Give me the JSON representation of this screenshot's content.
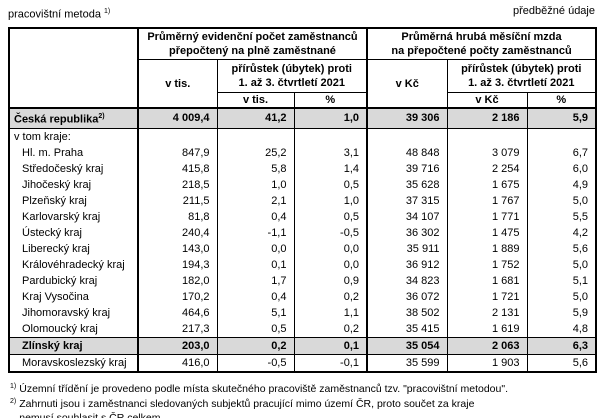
{
  "page": {
    "top_left_label": "pracovištní metoda",
    "top_left_sup": "1)",
    "top_right_label": "předběžné údaje"
  },
  "table": {
    "header": {
      "group1": "Průměrný evidenční počet zaměstnanců\npřepočtený na plně zaměstnané",
      "group2": "Průměrná hrubá měsíční mzda\nna přepočtené počty zaměstnanců",
      "col_v_tis": "v tis.",
      "col_v_kc": "v Kč",
      "increase1": "přírůstek (úbytek) proti\n1. až 3. čtvrtletí 2021",
      "increase2": "přírůstek (úbytek) proti\n1. až 3. čtvrtletí 2021",
      "sub_v_tis": "v tis.",
      "sub_pct1": "%",
      "sub_v_kc": "v Kč",
      "sub_pct2": "%"
    },
    "rows": [
      {
        "label": "Česká republika",
        "sup": "2)",
        "highlight": true,
        "indent": false,
        "values": [
          "4 009,4",
          "41,2",
          "1,0",
          "39 306",
          "2 186",
          "5,9"
        ]
      },
      {
        "label": "v tom kraje:",
        "section": true,
        "indent": false,
        "values": [
          "",
          "",
          "",
          "",
          "",
          ""
        ]
      },
      {
        "label": "Hl. m. Praha",
        "indent": true,
        "values": [
          "847,9",
          "25,2",
          "3,1",
          "48 848",
          "3 079",
          "6,7"
        ]
      },
      {
        "label": "Středočeský kraj",
        "indent": true,
        "values": [
          "415,8",
          "5,8",
          "1,4",
          "39 716",
          "2 254",
          "6,0"
        ]
      },
      {
        "label": "Jihočeský kraj",
        "indent": true,
        "values": [
          "218,5",
          "1,0",
          "0,5",
          "35 628",
          "1 675",
          "4,9"
        ]
      },
      {
        "label": "Plzeňský kraj",
        "indent": true,
        "values": [
          "211,5",
          "2,1",
          "1,0",
          "37 315",
          "1 767",
          "5,0"
        ]
      },
      {
        "label": "Karlovarský kraj",
        "indent": true,
        "values": [
          "81,8",
          "0,4",
          "0,5",
          "34 107",
          "1 771",
          "5,5"
        ]
      },
      {
        "label": "Ústecký kraj",
        "indent": true,
        "values": [
          "240,4",
          "-1,1",
          "-0,5",
          "36 302",
          "1 475",
          "4,2"
        ]
      },
      {
        "label": "Liberecký kraj",
        "indent": true,
        "values": [
          "143,0",
          "0,0",
          "0,0",
          "35 911",
          "1 889",
          "5,6"
        ]
      },
      {
        "label": "Královéhradecký kraj",
        "indent": true,
        "values": [
          "194,3",
          "0,1",
          "0,0",
          "36 912",
          "1 752",
          "5,0"
        ]
      },
      {
        "label": "Pardubický kraj",
        "indent": true,
        "values": [
          "182,0",
          "1,7",
          "0,9",
          "34 823",
          "1 681",
          "5,1"
        ]
      },
      {
        "label": "Kraj Vysočina",
        "indent": true,
        "values": [
          "170,2",
          "0,4",
          "0,2",
          "36 072",
          "1 721",
          "5,0"
        ]
      },
      {
        "label": "Jihomoravský kraj",
        "indent": true,
        "values": [
          "464,6",
          "5,1",
          "1,1",
          "38 502",
          "2 131",
          "5,9"
        ]
      },
      {
        "label": "Olomoucký kraj",
        "indent": true,
        "values": [
          "217,3",
          "0,5",
          "0,2",
          "35 415",
          "1 619",
          "4,8"
        ]
      },
      {
        "label": "Zlínský kraj",
        "highlight": true,
        "indent": true,
        "values": [
          "203,0",
          "0,2",
          "0,1",
          "35 054",
          "2 063",
          "6,3"
        ]
      },
      {
        "label": "Moravskoslezský kraj",
        "indent": true,
        "values": [
          "416,0",
          "-0,5",
          "-0,1",
          "35 599",
          "1 903",
          "5,6"
        ]
      }
    ]
  },
  "footnotes": [
    {
      "sup": "1)",
      "text": "Územní třídění je provedeno podle místa skutečného pracoviště zaměstnanců tzv. \"pracovištní metodou\"."
    },
    {
      "sup": "2)",
      "text": "Zahrnuti jsou i zaměstnanci sledovaných subjektů pracující mimo území ČR, proto součet za kraje\nnemusí souhlasit s ČR celkem."
    }
  ],
  "colors": {
    "highlight_bg": "#d9d9d9",
    "border": "#000000",
    "background": "#ffffff"
  }
}
